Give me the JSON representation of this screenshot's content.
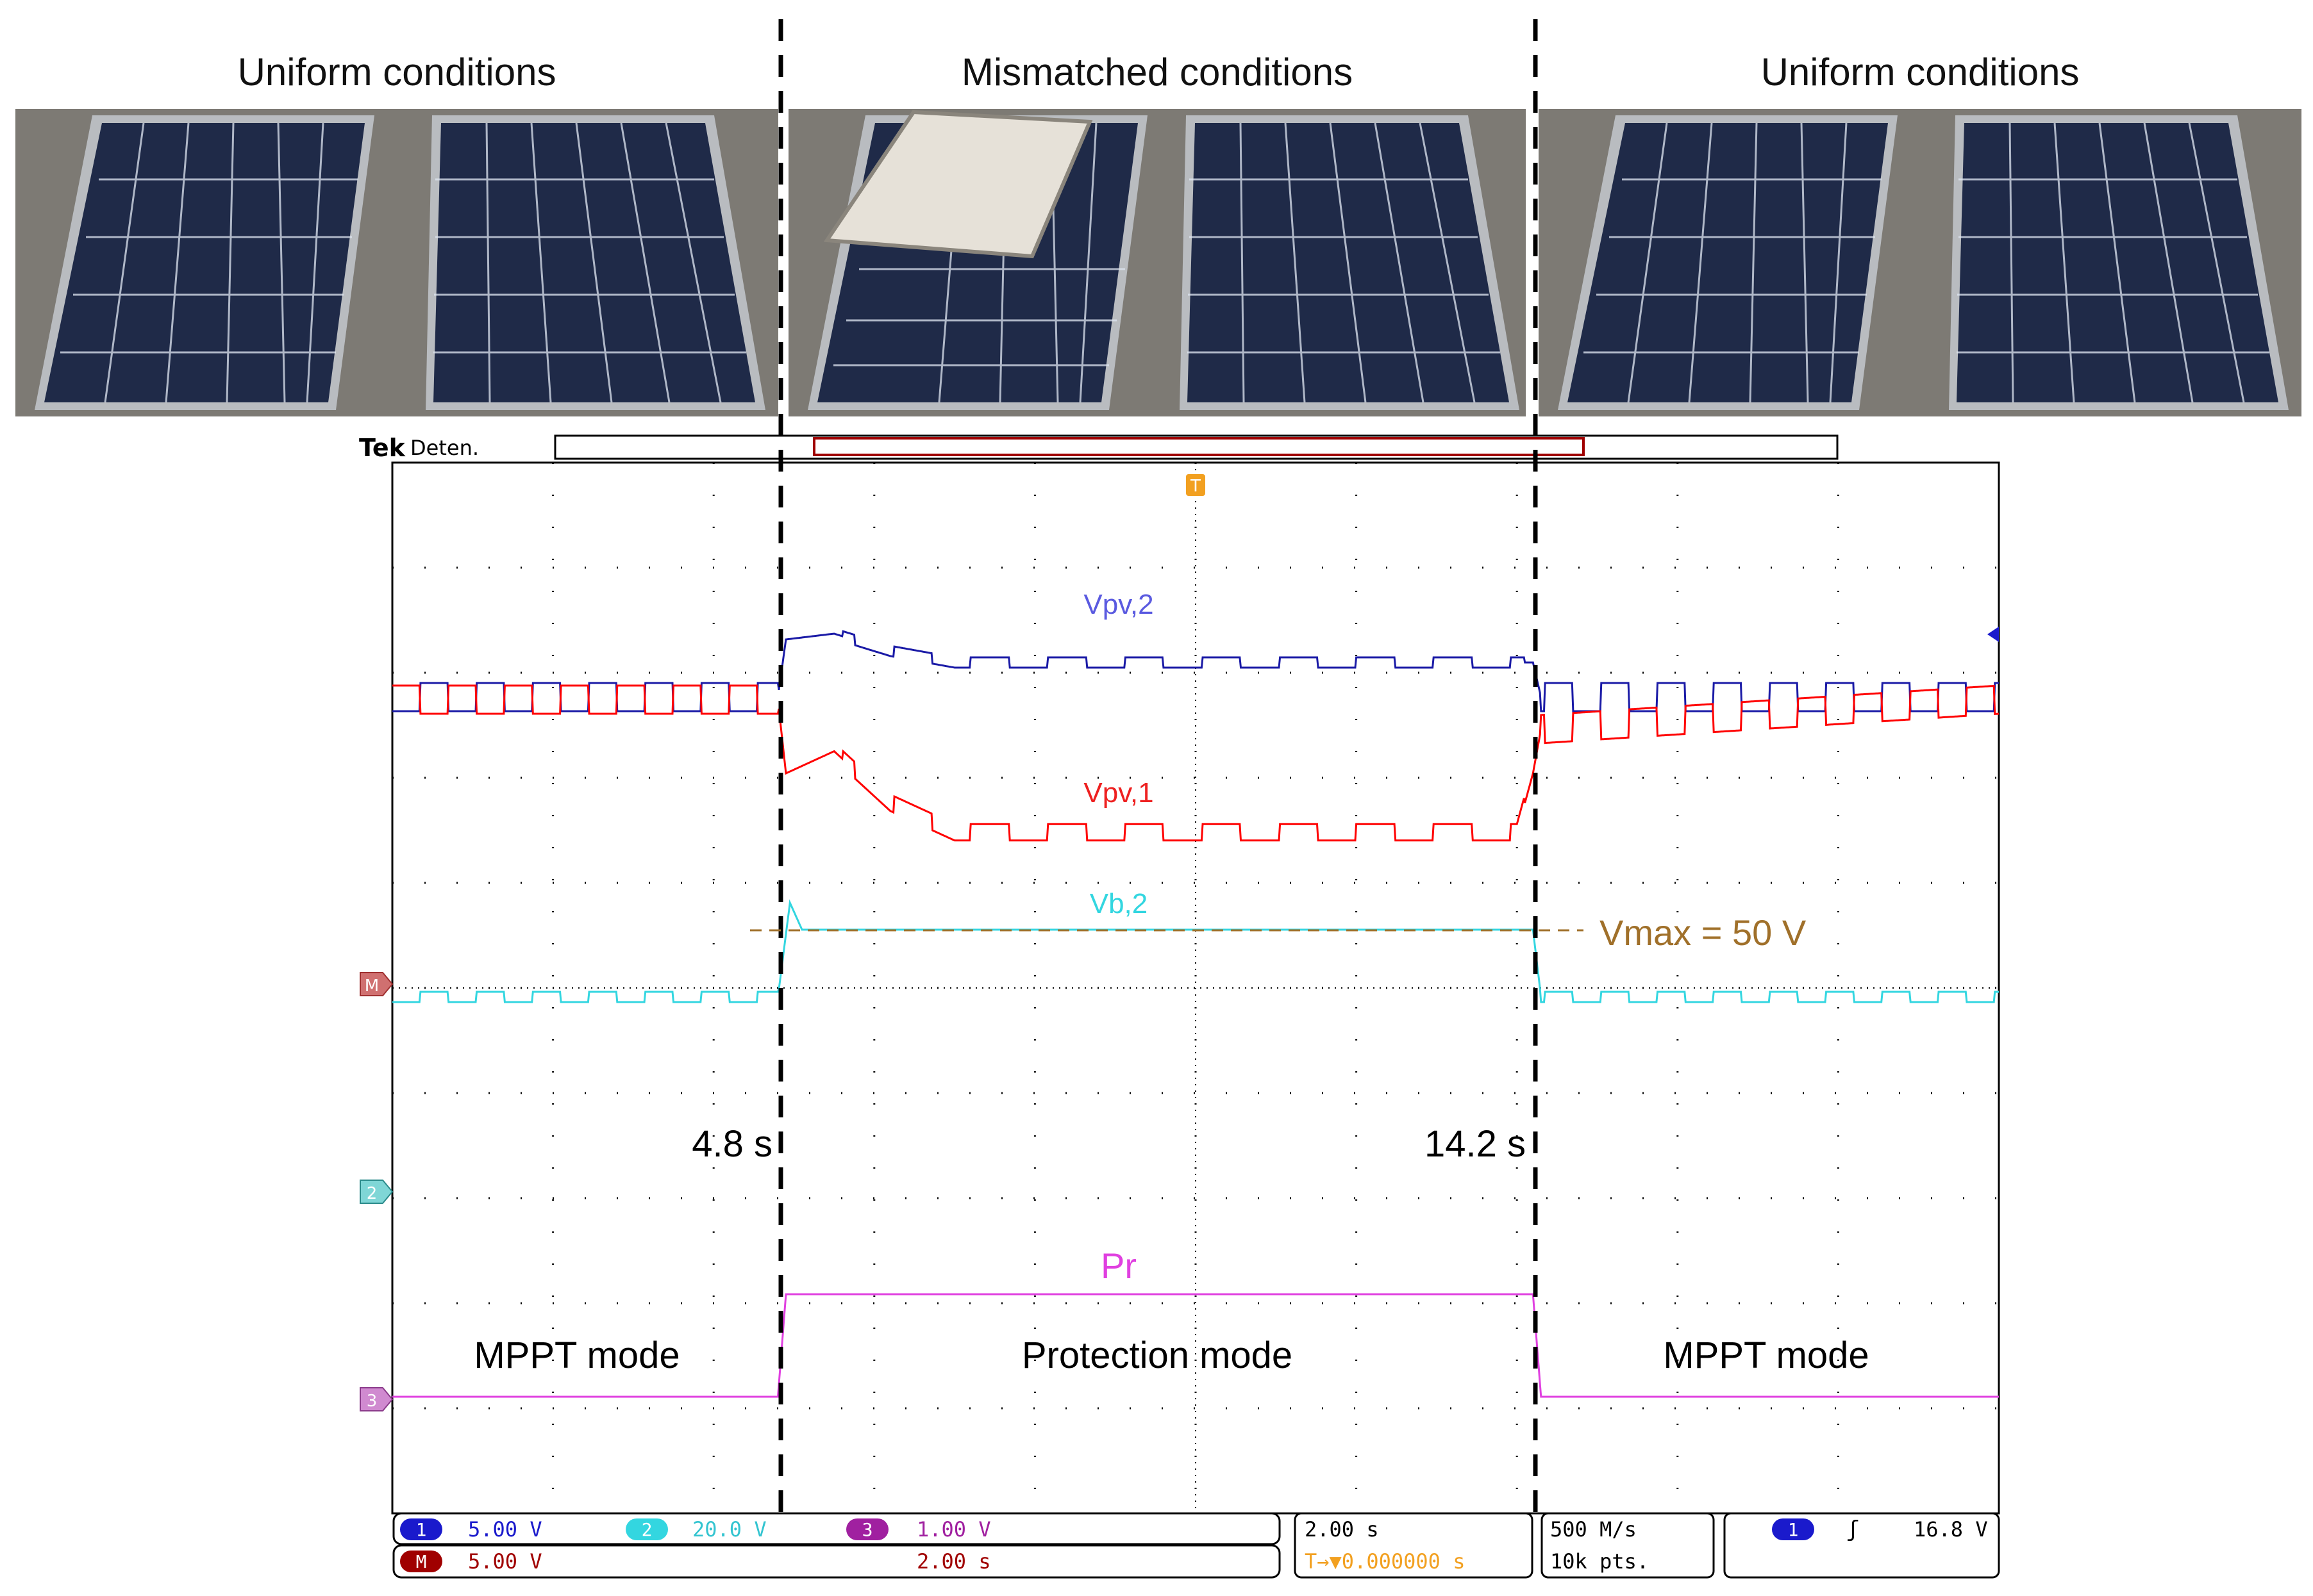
{
  "sections": [
    {
      "title": "Uniform conditions"
    },
    {
      "title": "Mismatched conditions"
    },
    {
      "title": "Uniform conditions"
    }
  ],
  "scope": {
    "brand": "Tek",
    "state": "Deten.",
    "trigger_marker": "T",
    "channel_markers": {
      "math": "M",
      "ch2": "2",
      "ch3": "3"
    }
  },
  "annotations": {
    "vmax": "Vmax = 50 V",
    "t1": "4.8 s",
    "t2": "14.2 s",
    "mode_left": "MPPT mode",
    "mode_center": "Protection mode",
    "mode_right": "MPPT mode"
  },
  "status_bar": {
    "ch1_num": "1",
    "ch1_scale": "5.00 V",
    "ch2_num": "2",
    "ch2_scale": "20.0 V",
    "ch3_num": "3",
    "ch3_scale": "1.00 V",
    "math_num": "M",
    "math_scale": "5.00 V",
    "math_time": "2.00 s",
    "timebase": "2.00 s",
    "trigger_delay": "T→▼0.000000 s",
    "sample_rate": "500 M/s",
    "record_length": "10k pts.",
    "trig_source": "1",
    "trig_slope": "ʃ",
    "trig_level": "16.8 V"
  },
  "colors": {
    "vpv1": "#ff0000",
    "vpv2": "#1a1aa6",
    "vb2": "#33d6e0",
    "pr": "#e040e0",
    "vmax": "#a0702a",
    "grid": "#000000"
  },
  "chart_data": {
    "type": "line",
    "title": "",
    "xlabel": "",
    "ylabel": "",
    "xlim": [
      0,
      20
    ],
    "x_unit": "s",
    "grid": true,
    "divisions": {
      "x": 10,
      "y": 10
    },
    "events": [
      4.8,
      14.2
    ],
    "series": [
      {
        "name": "Vpv,2",
        "color": "#1a1aa6",
        "x": [
          0,
          4.8,
          4.9,
          5.5,
          6.2,
          7.0,
          14.0,
          14.2,
          14.3,
          20
        ],
        "y": [
          0.0,
          0.0,
          0.5,
          0.55,
          0.4,
          0.3,
          0.3,
          0.3,
          0.0,
          0.0
        ]
      },
      {
        "name": "Vpv,1",
        "color": "#ff0000",
        "x": [
          0,
          4.8,
          4.9,
          5.5,
          6.2,
          7.0,
          14.0,
          14.2,
          14.3,
          20
        ],
        "y": [
          0.0,
          0.0,
          -0.5,
          -0.35,
          -0.7,
          -0.9,
          -0.9,
          -0.5,
          -0.2,
          0.0
        ]
      },
      {
        "name": "Vb,2",
        "color": "#33d6e0",
        "x": [
          0,
          4.8,
          4.95,
          5.1,
          14.2,
          14.3,
          20
        ],
        "y": [
          0.0,
          0.0,
          1.05,
          0.75,
          0.75,
          0.0,
          0.0
        ]
      },
      {
        "name": "Pr",
        "color": "#e040e0",
        "x": [
          0,
          4.8,
          4.9,
          14.2,
          14.3,
          20
        ],
        "y": [
          0.0,
          0.0,
          1.0,
          1.0,
          0.0,
          0.0
        ]
      }
    ],
    "series_labels": [
      "Vpv,2",
      "Vpv,1",
      "Vb,2",
      "Pr"
    ]
  }
}
